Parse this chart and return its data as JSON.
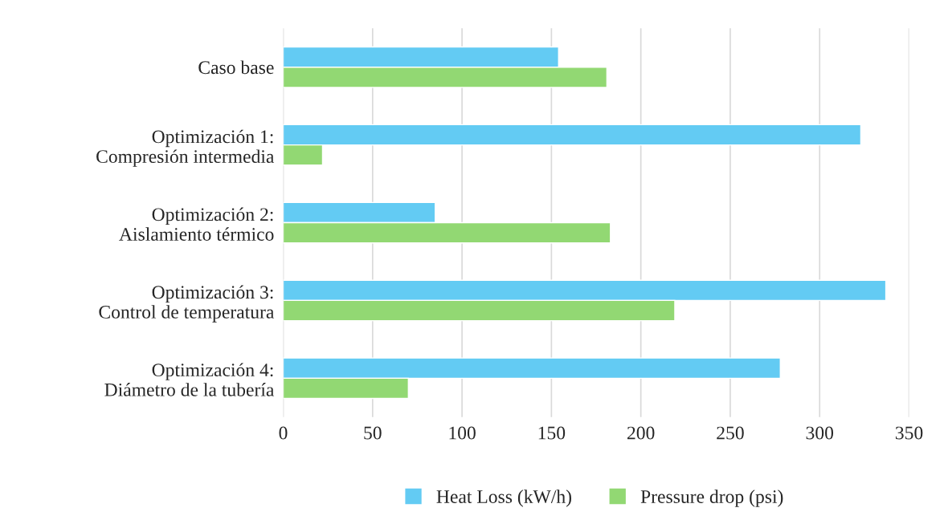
{
  "chart_data": {
    "type": "bar",
    "orientation": "horizontal",
    "categories": [
      "Caso base",
      "Optimización 1:\nCompresión intermedia",
      "Optimización 2:\nAislamiento térmico",
      "Optimización 3:\nControl de temperatura",
      "Optimización 4:\nDiámetro de la tubería"
    ],
    "series": [
      {
        "name": "Heat Loss (kW/h)",
        "color": "#63cbf3",
        "values": [
          154,
          323,
          85,
          337,
          278
        ]
      },
      {
        "name": "Pressure drop (psi)",
        "color": "#92d873",
        "values": [
          181,
          22,
          183,
          219,
          70
        ]
      }
    ],
    "xlim": [
      0,
      350
    ],
    "xticks": [
      0,
      50,
      100,
      150,
      200,
      250,
      300,
      350
    ],
    "grid": "x",
    "legend": "bottom"
  }
}
